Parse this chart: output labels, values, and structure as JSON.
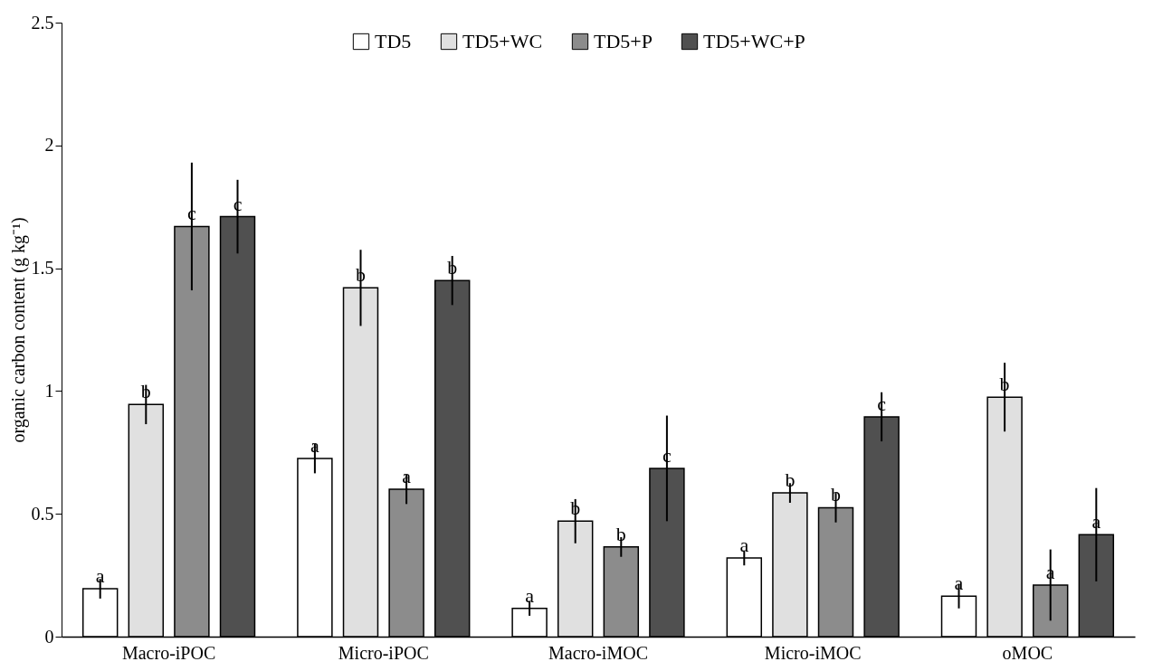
{
  "chart_data": {
    "type": "bar",
    "ylabel": "organic carbon content (g kg⁻¹)",
    "categories": [
      "Macro-iPOC",
      "Micro-iPOC",
      "Macro-iMOC",
      "Micro-iMOC",
      "oMOC"
    ],
    "series": [
      {
        "name": "TD5",
        "color": "#ffffff",
        "values": [
          0.195,
          0.725,
          0.115,
          0.32,
          0.165
        ],
        "errors": [
          0.04,
          0.06,
          0.03,
          0.03,
          0.05
        ],
        "value_labels": [
          "a",
          "a",
          "a",
          "a",
          "a"
        ]
      },
      {
        "name": "TD5+WC",
        "color": "#e0e0e0",
        "values": [
          0.945,
          1.42,
          0.47,
          0.585,
          0.975
        ],
        "errors": [
          0.08,
          0.155,
          0.09,
          0.04,
          0.14
        ],
        "value_labels": [
          "b",
          "b",
          "b",
          "b",
          "b"
        ]
      },
      {
        "name": "TD5+P",
        "color": "#8c8c8c",
        "values": [
          1.67,
          0.6,
          0.365,
          0.525,
          0.21
        ],
        "errors": [
          0.26,
          0.06,
          0.04,
          0.06,
          0.145
        ],
        "value_labels": [
          "c",
          "a",
          "b",
          "b",
          "a"
        ]
      },
      {
        "name": "TD5+WC+P",
        "color": "#505050",
        "values": [
          1.71,
          1.45,
          0.685,
          0.895,
          0.415
        ],
        "errors": [
          0.15,
          0.1,
          0.215,
          0.1,
          0.19
        ],
        "value_labels": [
          "c",
          "b",
          "c",
          "c",
          "a"
        ]
      }
    ],
    "ylim": [
      0,
      2.5
    ],
    "yticks": [
      0,
      0.5,
      1,
      1.5,
      2,
      2.5
    ],
    "grid": false,
    "legend": "top"
  }
}
